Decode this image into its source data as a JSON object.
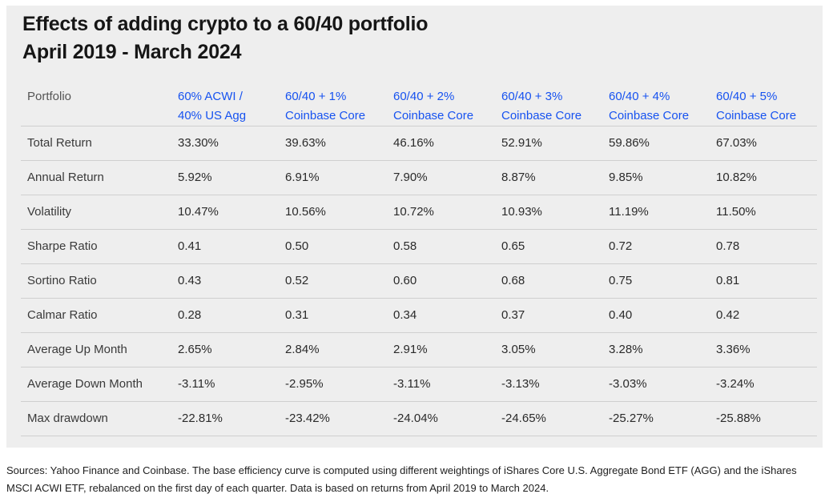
{
  "title_line1": "Effects of adding crypto to a 60/40 portfolio",
  "title_line2": "April 2019 - March 2024",
  "chart_data": {
    "type": "table",
    "title": "Effects of adding crypto to a 60/40 portfolio April 2019 - March 2024",
    "row_header": "Portfolio",
    "columns": [
      {
        "line1": "60% ACWI /",
        "line2": "40% US Agg"
      },
      {
        "line1": "60/40 + 1%",
        "line2": "Coinbase Core"
      },
      {
        "line1": "60/40 + 2%",
        "line2": "Coinbase Core"
      },
      {
        "line1": "60/40 + 3%",
        "line2": "Coinbase Core"
      },
      {
        "line1": "60/40 + 4%",
        "line2": "Coinbase Core"
      },
      {
        "line1": "60/40 + 5%",
        "line2": "Coinbase Core"
      }
    ],
    "rows": [
      {
        "metric": "Total Return",
        "values": [
          "33.30%",
          "39.63%",
          "46.16%",
          "52.91%",
          "59.86%",
          "67.03%"
        ]
      },
      {
        "metric": "Annual Return",
        "values": [
          "5.92%",
          "6.91%",
          "7.90%",
          "8.87%",
          "9.85%",
          "10.82%"
        ]
      },
      {
        "metric": "Volatility",
        "values": [
          "10.47%",
          "10.56%",
          "10.72%",
          "10.93%",
          "11.19%",
          "11.50%"
        ]
      },
      {
        "metric": "Sharpe Ratio",
        "values": [
          "0.41",
          "0.50",
          "0.58",
          "0.65",
          "0.72",
          "0.78"
        ]
      },
      {
        "metric": "Sortino Ratio",
        "values": [
          "0.43",
          "0.52",
          "0.60",
          "0.68",
          "0.75",
          "0.81"
        ]
      },
      {
        "metric": "Calmar Ratio",
        "values": [
          "0.28",
          "0.31",
          "0.34",
          "0.37",
          "0.40",
          "0.42"
        ]
      },
      {
        "metric": "Average Up Month",
        "values": [
          "2.65%",
          "2.84%",
          "2.91%",
          "3.05%",
          "3.28%",
          "3.36%"
        ]
      },
      {
        "metric": "Average Down Month",
        "values": [
          "-3.11%",
          "-2.95%",
          "-3.11%",
          "-3.13%",
          "-3.03%",
          "-3.24%"
        ]
      },
      {
        "metric": "Max drawdown",
        "values": [
          "-22.81%",
          "-23.42%",
          "-24.04%",
          "-24.65%",
          "-25.27%",
          "-25.88%"
        ]
      }
    ]
  },
  "sources_text": "Sources: Yahoo Finance and Coinbase. The base efficiency curve is computed using different weightings of iShares Core U.S. Aggregate Bond ETF (AGG) and the iShares MSCI ACWI ETF, rebalanced on the first day of each quarter. Data is based on returns from April 2019 to March 2024.",
  "colors": {
    "header_blue": "#1652f0",
    "panel_bg": "#eeeeee"
  }
}
